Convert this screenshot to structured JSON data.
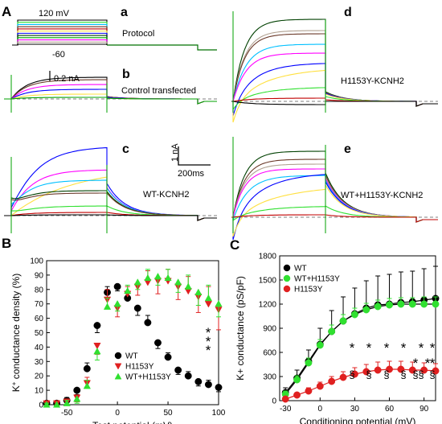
{
  "panels": {
    "A": "A",
    "B": "B",
    "C": "C",
    "a": "a",
    "b": "b",
    "c": "c",
    "d": "d",
    "e": "e"
  },
  "traces": {
    "colors": [
      "#000000",
      "#c00000",
      "#00a000",
      "#30e030",
      "#ffe040",
      "#ff00ff",
      "#00c0ff",
      "#0000ff",
      "#b0a090",
      "#6b3a2a",
      "#004000"
    ],
    "protocol": {
      "top_label": "120 mV",
      "bottom_label": "-60",
      "title": "Protocol"
    },
    "control": {
      "scale_label": "0.2 nA",
      "title": "Control transfected"
    },
    "wt": {
      "title": "WT-KCNH2"
    },
    "mut": {
      "title": "H1153Y-KCNH2"
    },
    "wtmut": {
      "title": "WT+H1153Y-KCNH2"
    },
    "scale": {
      "current": "1 nA",
      "time": "200ms"
    }
  },
  "chart_data": [
    {
      "type": "scatter",
      "panel": "B",
      "xlabel": "Test potential (mV)",
      "ylabel": "K+ conductance density (%)",
      "ylabel_parts": [
        "K",
        "+",
        " conductance density (%)"
      ],
      "xlim": [
        -70,
        100
      ],
      "ylim": [
        0,
        100
      ],
      "xticks": [
        -50,
        0,
        50,
        100
      ],
      "yticks": [
        0,
        10,
        20,
        30,
        40,
        50,
        60,
        70,
        80,
        90,
        100
      ],
      "legend_position": "lower-middle",
      "x": [
        -70,
        -60,
        -50,
        -40,
        -30,
        -20,
        -10,
        0,
        10,
        20,
        30,
        40,
        50,
        60,
        70,
        80,
        90,
        100
      ],
      "series": [
        {
          "name": "WT",
          "color": "#000000",
          "marker": "circle",
          "values": [
            1,
            1,
            3,
            10,
            25,
            55,
            78,
            82,
            74,
            67,
            57,
            43,
            33,
            24,
            20,
            16,
            14,
            12
          ],
          "errors": [
            1,
            1,
            2,
            3,
            4,
            5,
            4,
            3,
            4,
            5,
            5,
            4,
            3,
            3,
            3,
            3,
            3,
            3
          ]
        },
        {
          "name": "H1153Y",
          "color": "#e02020",
          "marker": "triangle-down",
          "values": [
            1,
            1,
            2,
            5,
            15,
            41,
            73,
            67,
            77,
            82,
            85,
            86,
            86,
            82,
            79,
            75,
            70,
            66
          ],
          "errors": [
            1,
            1,
            2,
            3,
            4,
            6,
            7,
            6,
            5,
            6,
            8,
            9,
            8,
            9,
            10,
            11,
            12,
            14
          ]
        },
        {
          "name": "WT+H1153Y",
          "color": "#30e030",
          "marker": "triangle-up",
          "values": [
            0,
            0,
            1,
            4,
            13,
            37,
            68,
            70,
            79,
            85,
            88,
            89,
            88,
            85,
            82,
            78,
            74,
            70
          ],
          "errors": [
            1,
            1,
            2,
            3,
            4,
            6,
            6,
            5,
            4,
            5,
            6,
            6,
            6,
            7,
            8,
            9,
            9,
            9
          ]
        }
      ],
      "annotations": [
        "*",
        "*",
        "*"
      ]
    },
    {
      "type": "scatter",
      "panel": "C",
      "xlabel": "Conditioning potential (mV)",
      "ylabel": "K+ conductance (pS/pF)",
      "ylabel_parts": [
        "K+ conductance (pS/pF)"
      ],
      "xlim": [
        -35,
        100
      ],
      "ylim": [
        0,
        1800
      ],
      "xticks": [
        -30,
        0,
        30,
        60,
        90
      ],
      "yticks": [
        0,
        300,
        600,
        900,
        1200,
        1500,
        1800
      ],
      "legend_position": "top-left",
      "x": [
        -30,
        -20,
        -10,
        0,
        10,
        20,
        30,
        40,
        50,
        60,
        70,
        80,
        90,
        100
      ],
      "series": [
        {
          "name": "WT",
          "color": "#000000",
          "marker": "circle",
          "values": [
            100,
            280,
            490,
            700,
            860,
            990,
            1080,
            1150,
            1190,
            1200,
            1220,
            1230,
            1250,
            1270
          ],
          "errors": [
            60,
            100,
            140,
            200,
            260,
            300,
            320,
            340,
            360,
            370,
            380,
            380,
            390,
            400
          ]
        },
        {
          "name": "WT+H1153Y",
          "color": "#30e030",
          "marker": "circle",
          "values": [
            80,
            260,
            470,
            690,
            860,
            990,
            1070,
            1130,
            1170,
            1190,
            1200,
            1200,
            1200,
            1200
          ],
          "errors": [
            40,
            50,
            60,
            70,
            80,
            80,
            80,
            80,
            80,
            80,
            80,
            80,
            90,
            90
          ]
        },
        {
          "name": "H1153Y",
          "color": "#e02020",
          "marker": "circle",
          "values": [
            20,
            70,
            120,
            180,
            240,
            290,
            330,
            360,
            380,
            390,
            390,
            380,
            380,
            370
          ],
          "errors": [
            20,
            30,
            40,
            50,
            60,
            70,
            80,
            90,
            100,
            100,
            100,
            100,
            90,
            90
          ]
        }
      ],
      "annotations": [
        "*",
        "*",
        "*",
        "*",
        "*",
        "*",
        "*",
        "*",
        "*",
        "§",
        "§",
        "§",
        "§",
        "§",
        "§",
        "§"
      ]
    }
  ]
}
